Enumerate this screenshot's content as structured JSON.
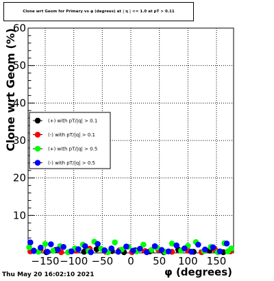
{
  "chart_data": {
    "type": "scatter",
    "title": "Clone wrt Geom for Primary vs φ (degrees) at | η | <= 1.0 at pT > 0.11",
    "xlabel": "φ (degrees)",
    "ylabel": "Clone wrt Geom (%)",
    "xlim": [
      -180,
      180
    ],
    "ylim": [
      0,
      60
    ],
    "x_tick_labels": [
      "−150",
      "−100",
      "−50",
      "0",
      "50",
      "100",
      "150"
    ],
    "x_ticks": [
      -150,
      -100,
      -50,
      0,
      50,
      100,
      150
    ],
    "y_ticks": [
      0,
      10,
      20,
      30,
      40,
      50,
      60
    ],
    "y_tick_labels": [
      "10",
      "20",
      "30",
      "40",
      "50",
      "60"
    ],
    "grid": true,
    "legend_position": "left-middle",
    "series": [
      {
        "name": "(+) with pT/|q| > 0.1",
        "color": "#000000",
        "points": [
          [
            -170,
            0.6
          ],
          [
            -148,
            0.2
          ],
          [
            -132,
            0.8
          ],
          [
            -105,
            0.4
          ],
          [
            -82,
            0.3
          ],
          [
            -60,
            1.0
          ],
          [
            -33,
            0.5
          ],
          [
            -12,
            0.2
          ],
          [
            8,
            0.7
          ],
          [
            33,
            0.4
          ],
          [
            58,
            0.2
          ],
          [
            83,
            0.9
          ],
          [
            110,
            0.3
          ],
          [
            138,
            0.6
          ],
          [
            162,
            0.2
          ]
        ]
      },
      {
        "name": "(-) with pT/|q| > 0.1",
        "color": "#ff0000",
        "points": [
          [
            -176,
            0.4
          ],
          [
            -158,
            0.9
          ],
          [
            -122,
            0.2
          ],
          [
            -96,
            0.6
          ],
          [
            -72,
            1.1
          ],
          [
            -44,
            0.3
          ],
          [
            -20,
            0.7
          ],
          [
            2,
            0.2
          ],
          [
            25,
            0.5
          ],
          [
            48,
            0.9
          ],
          [
            72,
            0.3
          ],
          [
            100,
            0.6
          ],
          [
            124,
            0.2
          ],
          [
            148,
            0.8
          ],
          [
            174,
            0.4
          ]
        ]
      },
      {
        "name": "(+) with pT/|q| > 0.5",
        "color": "#00ff00",
        "points": [
          [
            -178,
            1.5
          ],
          [
            -162,
            0.3
          ],
          [
            -150,
            2.4
          ],
          [
            -136,
            0.6
          ],
          [
            -124,
            1.8
          ],
          [
            -110,
            0.2
          ],
          [
            -98,
            1.2
          ],
          [
            -84,
            2.2
          ],
          [
            -74,
            0.5
          ],
          [
            -64,
            3.0
          ],
          [
            -52,
            1.1
          ],
          [
            -40,
            0.2
          ],
          [
            -28,
            2.8
          ],
          [
            -16,
            0.9
          ],
          [
            -4,
            1.6
          ],
          [
            10,
            0.4
          ],
          [
            22,
            2.2
          ],
          [
            36,
            0.8
          ],
          [
            46,
            1.4
          ],
          [
            60,
            0.3
          ],
          [
            72,
            2.5
          ],
          [
            88,
            0.6
          ],
          [
            100,
            1.9
          ],
          [
            114,
            2.9
          ],
          [
            128,
            0.5
          ],
          [
            140,
            1.6
          ],
          [
            152,
            0.2
          ],
          [
            164,
            2.6
          ],
          [
            176,
            1.2
          ],
          [
            170,
            0.4
          ]
        ]
      },
      {
        "name": "(-) with pT/|q| > 0.5",
        "color": "#0000ff",
        "points": [
          [
            -176,
            2.8
          ],
          [
            -170,
            0.5
          ],
          [
            -158,
            1.4
          ],
          [
            -146,
            0.3
          ],
          [
            -140,
            2.3
          ],
          [
            -128,
            0.9
          ],
          [
            -118,
            1.6
          ],
          [
            -104,
            0.4
          ],
          [
            -92,
            1.0
          ],
          [
            -80,
            1.8
          ],
          [
            -70,
            0.2
          ],
          [
            -58,
            2.4
          ],
          [
            -46,
            0.7
          ],
          [
            -34,
            1.2
          ],
          [
            -22,
            0.3
          ],
          [
            -8,
            1.7
          ],
          [
            4,
            0.6
          ],
          [
            16,
            1.1
          ],
          [
            28,
            0.2
          ],
          [
            42,
            1.8
          ],
          [
            54,
            0.8
          ],
          [
            66,
            0.4
          ],
          [
            80,
            2.0
          ],
          [
            94,
            1.2
          ],
          [
            106,
            0.3
          ],
          [
            118,
            2.2
          ],
          [
            130,
            0.9
          ],
          [
            144,
            1.5
          ],
          [
            156,
            0.4
          ],
          [
            168,
            2.5
          ]
        ]
      }
    ]
  },
  "footer": {
    "timestamp": "Thu May 20 16:02:10 2021"
  }
}
